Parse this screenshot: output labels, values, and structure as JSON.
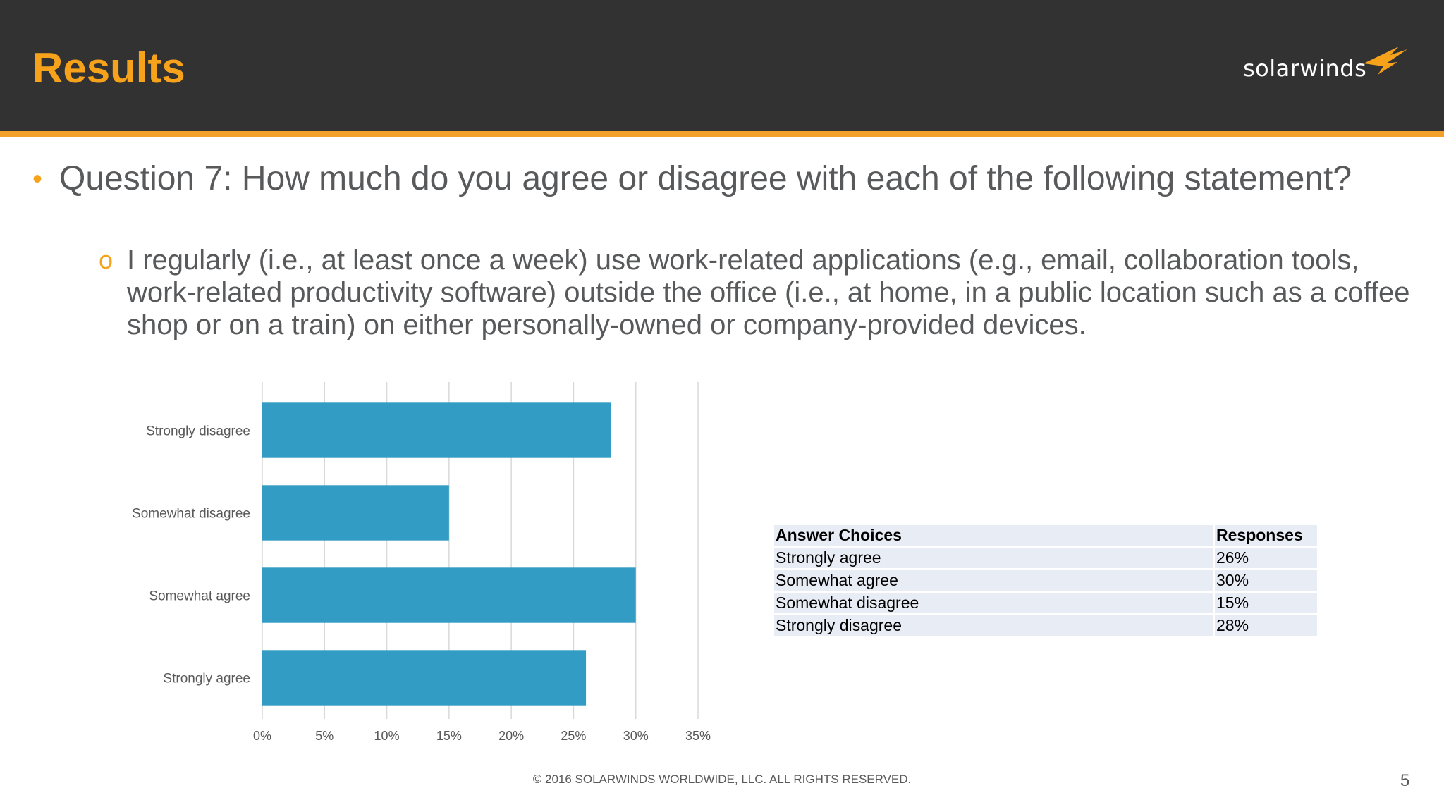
{
  "slide": {
    "title": "Results",
    "bullet1": "Question 7: How much do you agree or disagree with each of the following statement?",
    "bullet2": "I regularly (i.e., at least once a week) use work-related applications (e.g., email, collaboration tools, work-related productivity software) outside the office (i.e., at home, in a public location such as a coffee shop or on a train) on either personally-owned or company-provided devices.",
    "footer": "© 2016 SOLARWINDS WORLDWIDE, LLC. ALL RIGHTS RESERVED.",
    "page_number": "5"
  },
  "logo": {
    "text": "solarwinds"
  },
  "colors": {
    "header_bg": "#333233",
    "accent": "#f7a21b",
    "bar": "#339cc4"
  },
  "chart_data": {
    "type": "bar",
    "orientation": "horizontal",
    "categories": [
      "Strongly disagree",
      "Somewhat disagree",
      "Somewhat agree",
      "Strongly agree"
    ],
    "values": [
      28,
      15,
      30,
      26
    ],
    "xlim": [
      0,
      35
    ],
    "x_ticks": [
      "0%",
      "5%",
      "10%",
      "15%",
      "20%",
      "25%",
      "30%",
      "35%"
    ],
    "grid": true,
    "title": "",
    "xlabel": "",
    "ylabel": ""
  },
  "table": {
    "headers": [
      "Answer Choices",
      "Responses"
    ],
    "rows": [
      [
        "Strongly agree",
        "26%"
      ],
      [
        "Somewhat agree",
        "30%"
      ],
      [
        "Somewhat disagree",
        "15%"
      ],
      [
        "Strongly disagree",
        "28%"
      ]
    ]
  }
}
